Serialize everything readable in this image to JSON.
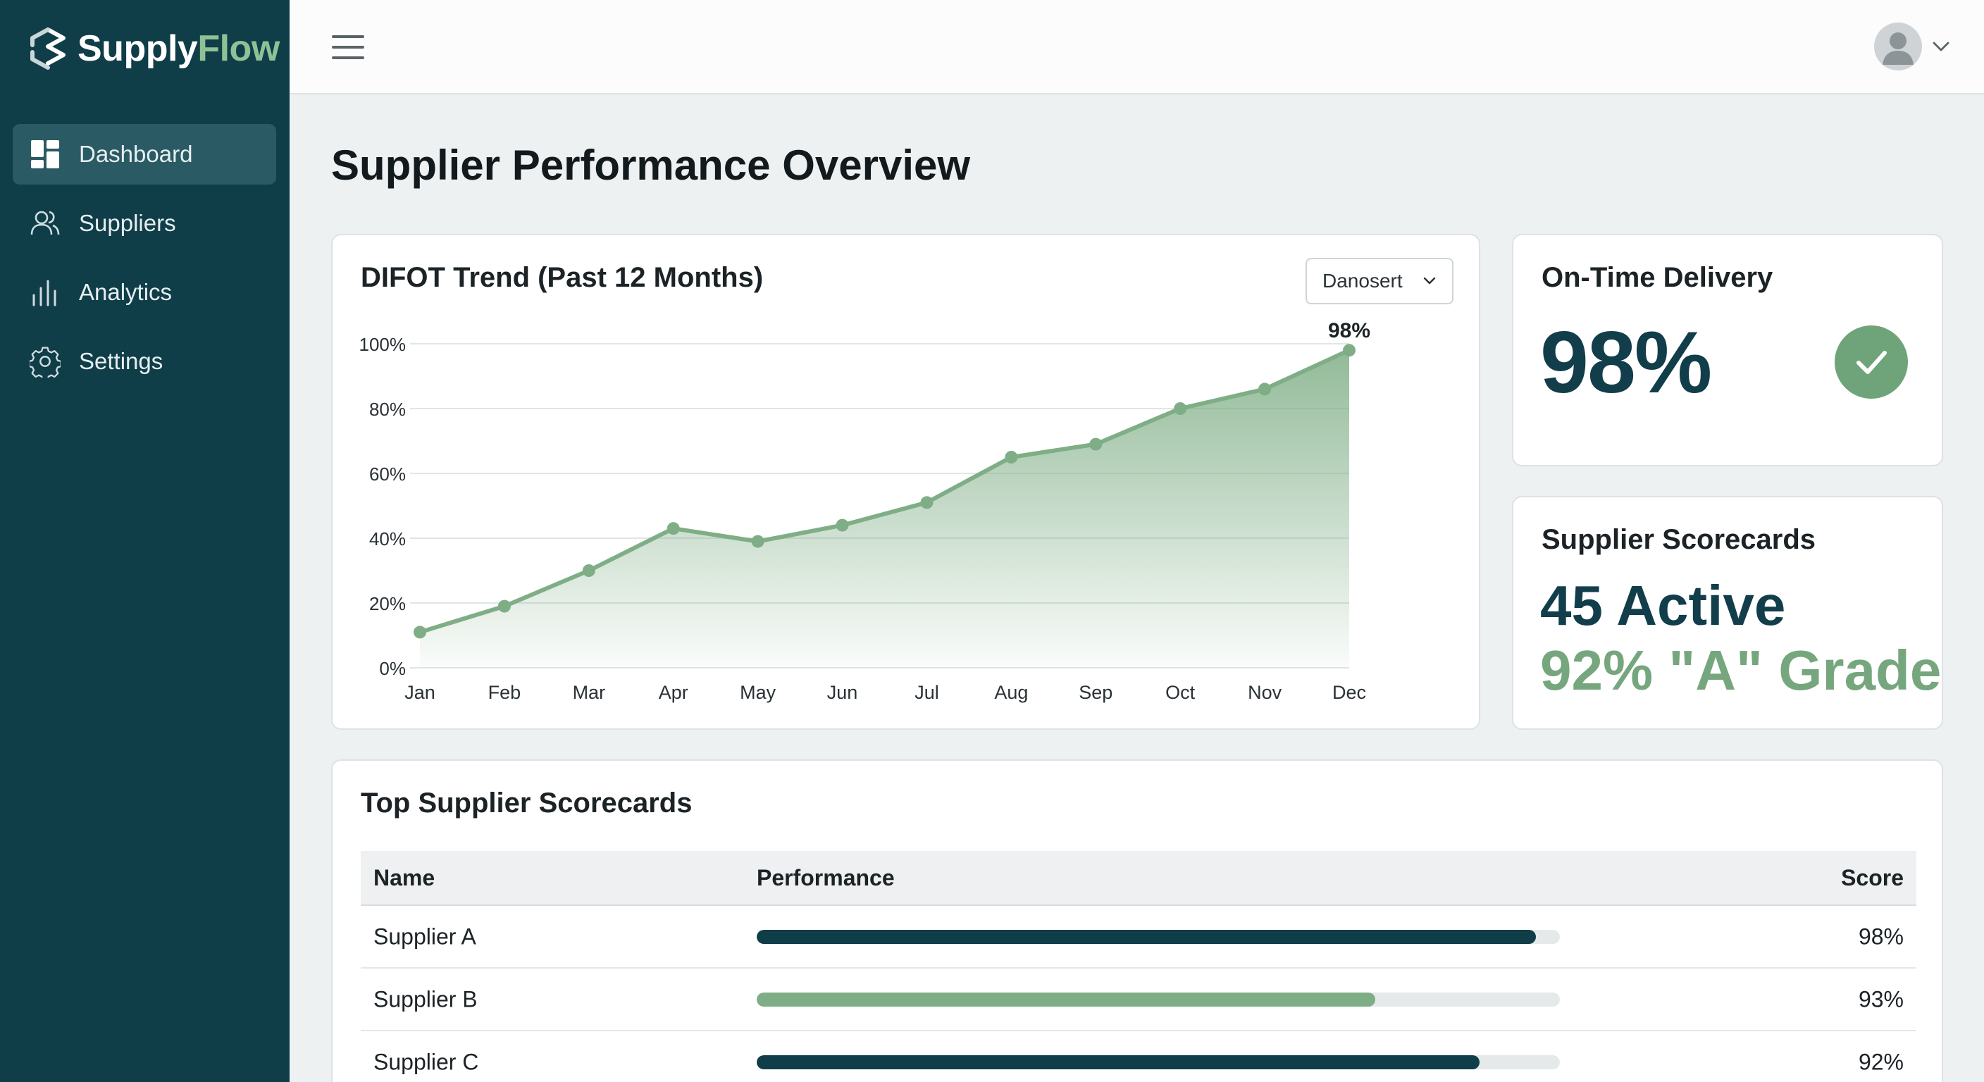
{
  "app": {
    "brand_primary": "Supply",
    "brand_accent": "Flow"
  },
  "sidebar": {
    "items": [
      {
        "label": "Dashboard",
        "icon": "dashboard-icon",
        "active": true
      },
      {
        "label": "Suppliers",
        "icon": "users-icon",
        "active": false
      },
      {
        "label": "Analytics",
        "icon": "bar-chart-icon",
        "active": false
      },
      {
        "label": "Settings",
        "icon": "gear-icon",
        "active": false
      }
    ]
  },
  "header": {
    "menu_icon": "hamburger-icon",
    "avatar_icon": "user-avatar-icon",
    "caret_icon": "chevron-down-icon"
  },
  "page": {
    "title": "Supplier Performance Overview"
  },
  "difot": {
    "title": "DIFOT Trend (Past 12 Months)",
    "dropdown_label": "Danosert"
  },
  "chart_data": {
    "type": "area",
    "title": "DIFOT Trend (Past 12 Months)",
    "categories": [
      "Jan",
      "Feb",
      "Mar",
      "Apr",
      "May",
      "Jun",
      "Jul",
      "Aug",
      "Sep",
      "Oct",
      "Nov",
      "Dec"
    ],
    "series": [
      {
        "values": [
          11,
          19,
          30,
          43,
          39,
          44,
          51,
          65,
          69,
          80,
          86,
          98
        ]
      }
    ],
    "y_ticks": [
      "0%",
      "20%",
      "40%",
      "60%",
      "80%",
      "100%"
    ],
    "ylim": [
      0,
      100
    ],
    "annotations": [
      {
        "category": "Dec",
        "label": "98%"
      }
    ],
    "grid": true,
    "legend": "none"
  },
  "otd": {
    "title": "On-Time Delivery",
    "value": "98%",
    "icon": "checkmark-icon"
  },
  "scorecards": {
    "title": "Supplier Scorecards",
    "active": "45 Active",
    "grade": "92% \"A\" Grade"
  },
  "top_suppliers": {
    "title": "Top Supplier Scorecards",
    "columns": [
      "Name",
      "Performance",
      "Score"
    ],
    "rows": [
      {
        "name": "Supplier A",
        "performance": 0.97,
        "score": "98%",
        "color": "#0f3d48"
      },
      {
        "name": "Supplier B",
        "performance": 0.77,
        "score": "93%",
        "color": "#7fae86"
      },
      {
        "name": "Supplier C",
        "performance": 0.9,
        "score": "92%",
        "color": "#0f3d48"
      }
    ]
  },
  "colors": {
    "sidebar": "#0f3d48",
    "accent_green": "#7fae86",
    "dark_teal": "#113e4a"
  }
}
